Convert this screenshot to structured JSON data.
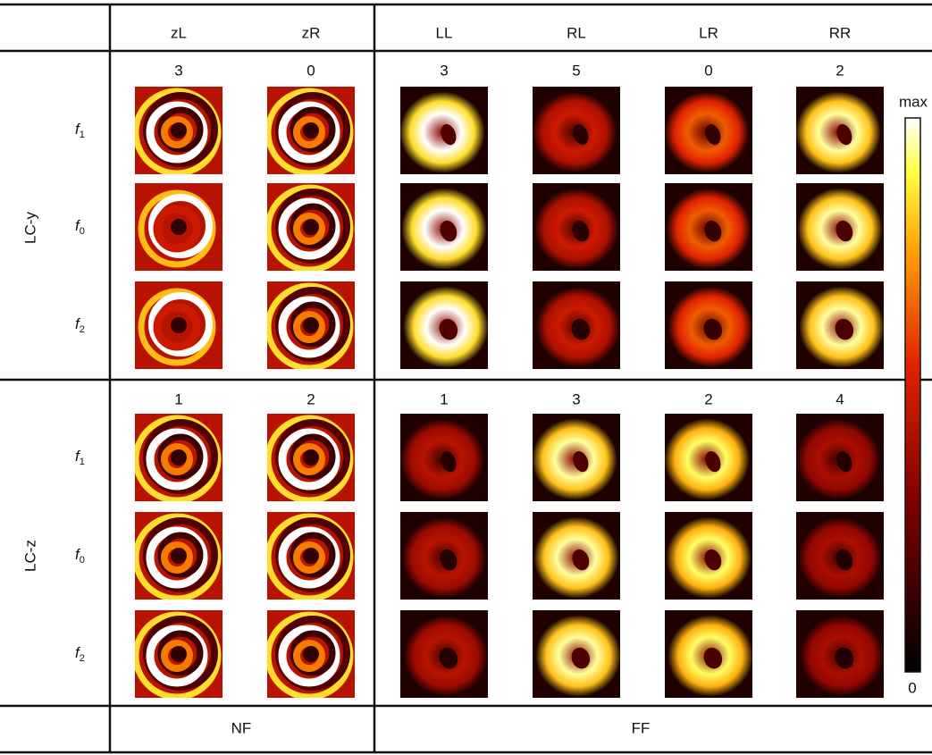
{
  "header": {
    "columns": [
      "zL",
      "zR",
      "LL",
      "RL",
      "LR",
      "RR"
    ]
  },
  "groups": [
    {
      "label": "LC-y",
      "counts": [
        3,
        0,
        3,
        5,
        0,
        2
      ],
      "rows": [
        {
          "var": "f",
          "sub": "1"
        },
        {
          "var": "f",
          "sub": "0"
        },
        {
          "var": "f",
          "sub": "2"
        }
      ]
    },
    {
      "label": "LC-z",
      "counts": [
        1,
        2,
        1,
        3,
        2,
        4
      ],
      "rows": [
        {
          "var": "f",
          "sub": "1"
        },
        {
          "var": "f",
          "sub": "0"
        },
        {
          "var": "f",
          "sub": "2"
        }
      ]
    }
  ],
  "colorbar": {
    "max": "max",
    "min": "0"
  },
  "footer": [
    "NF",
    "FF"
  ]
}
